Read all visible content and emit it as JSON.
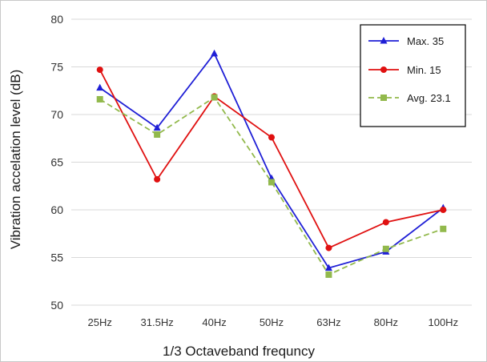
{
  "chart_data": {
    "type": "line",
    "xlabel": "1/3 Octaveband frequncy",
    "ylabel": "Vibration accelation level (dB)",
    "categories": [
      "25Hz",
      "31.5Hz",
      "40Hz",
      "50Hz",
      "63Hz",
      "80Hz",
      "100Hz"
    ],
    "ylim": [
      50,
      80
    ],
    "yticks": [
      50,
      55,
      60,
      65,
      70,
      75,
      80
    ],
    "grid": true,
    "legend_position": "top-right",
    "series": [
      {
        "name": "Max. 35",
        "values": [
          72.8,
          68.6,
          76.4,
          63.3,
          53.9,
          55.6,
          60.2
        ],
        "color": "#1f1fd6",
        "marker": "triangle",
        "dash": "solid"
      },
      {
        "name": "Min. 15",
        "values": [
          74.7,
          63.2,
          71.9,
          67.6,
          56.0,
          58.7,
          60.0
        ],
        "color": "#e01010",
        "marker": "circle",
        "dash": "solid"
      },
      {
        "name": "Avg. 23.1",
        "values": [
          71.6,
          67.9,
          71.8,
          62.9,
          53.2,
          55.9,
          58.0
        ],
        "color": "#92b94c",
        "marker": "square",
        "dash": "dashed"
      }
    ]
  }
}
